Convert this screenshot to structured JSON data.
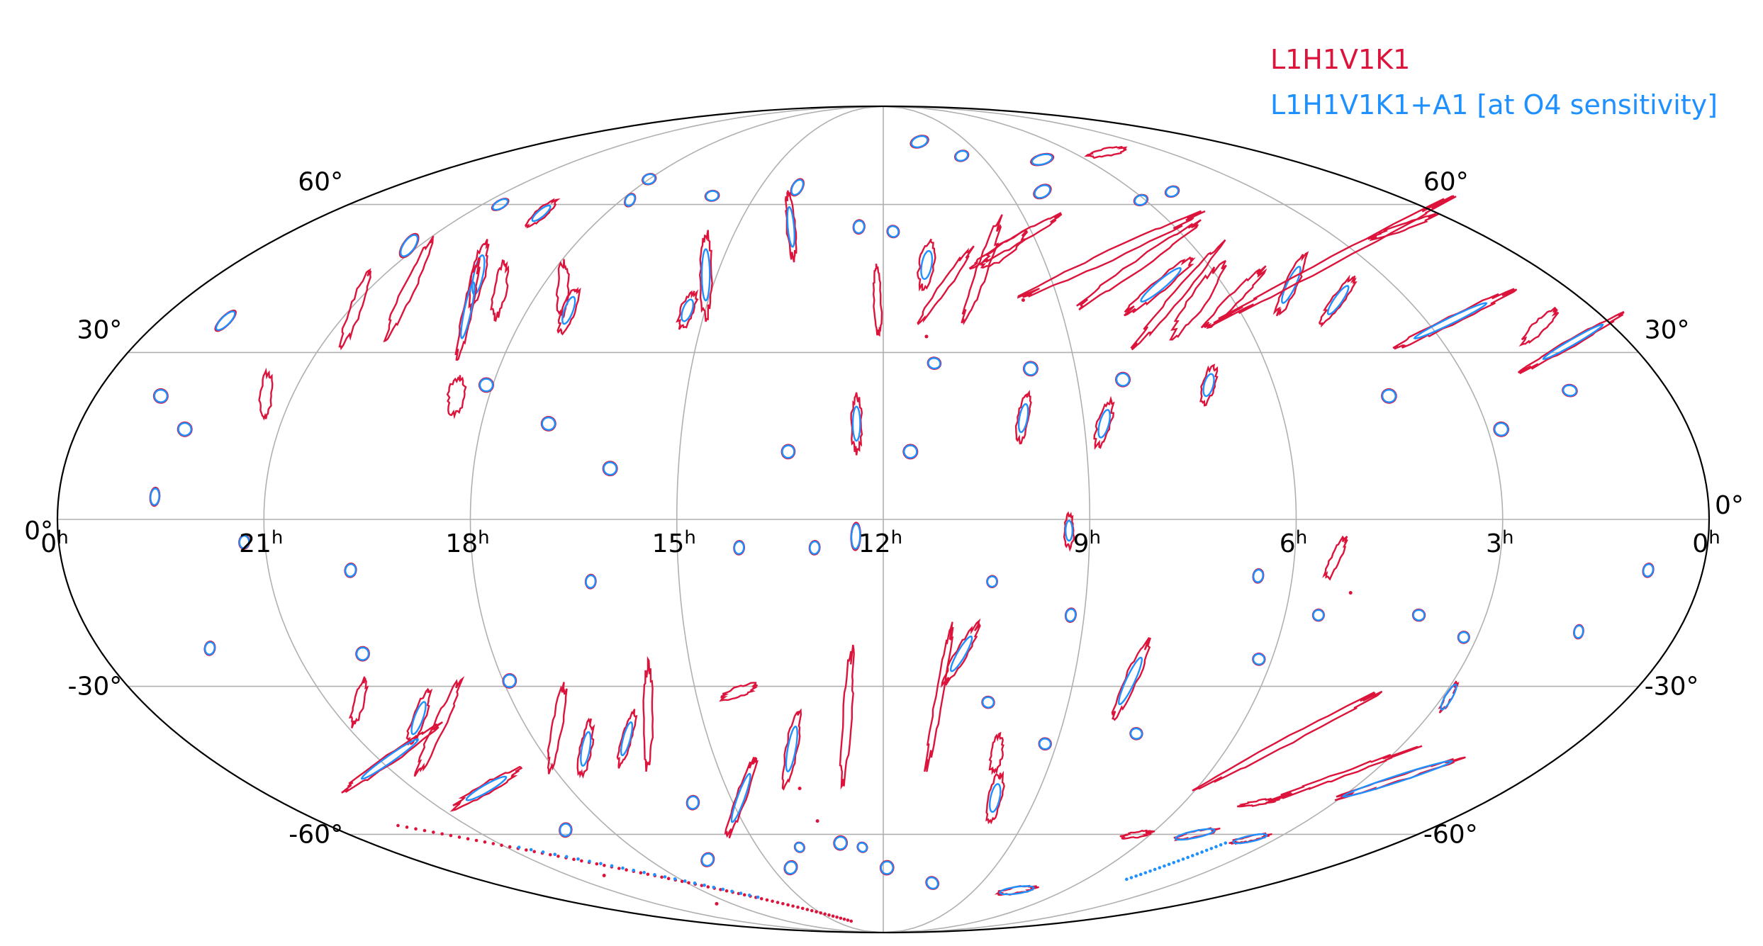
{
  "legend": [
    {
      "label": "L1H1V1K1",
      "color": "#dc143c"
    },
    {
      "label": "L1H1V1K1+A1 [at O4 sensitivity]",
      "color": "#1e90ff"
    }
  ],
  "projection": "mollweide",
  "grid": true,
  "ra_labels": [
    "0h",
    "21h",
    "18h",
    "15h",
    "12h",
    "9h",
    "6h",
    "3h",
    "0h"
  ],
  "dec_labels": {
    "left": [
      "60°",
      "30°",
      "0°",
      "-30°",
      "-60°"
    ],
    "right": [
      "60°",
      "30°",
      "0°",
      "-30°",
      "-60°"
    ]
  },
  "colors": {
    "red": "#dc143c",
    "blue": "#1e90ff",
    "grid": "#b0b0b0",
    "border": "#000000"
  },
  "regions": [
    {
      "ra": 13.9,
      "dec": 55,
      "len": 14,
      "w": 1.2,
      "ang": 95,
      "c": "both"
    },
    {
      "ra": 12.1,
      "dec": 40,
      "len": 14,
      "w": 1.0,
      "ang": 92,
      "c": "red"
    },
    {
      "ra": 11.2,
      "dec": 47,
      "len": 10,
      "w": 2.5,
      "ang": 80,
      "c": "both"
    },
    {
      "ra": 10.9,
      "dec": 43,
      "len": 18,
      "w": 1.3,
      "ang": 55,
      "c": "red"
    },
    {
      "ra": 10.2,
      "dec": 46,
      "len": 22,
      "w": 1.8,
      "ang": 70,
      "c": "red"
    },
    {
      "ra": 9.7,
      "dec": 50,
      "len": 12,
      "w": 2.2,
      "ang": 38,
      "c": "red"
    },
    {
      "ra": 9.4,
      "dec": 52,
      "len": 22,
      "w": 1.2,
      "ang": 30,
      "c": "red"
    },
    {
      "ra": 7.7,
      "dec": 49,
      "len": 40,
      "w": 1.5,
      "ang": 25,
      "c": "red"
    },
    {
      "ra": 7.3,
      "dec": 47,
      "len": 32,
      "w": 1.5,
      "ang": 35,
      "c": "red"
    },
    {
      "ra": 7.1,
      "dec": 43,
      "len": 18,
      "w": 2.0,
      "ang": 40,
      "c": "both"
    },
    {
      "ra": 6.9,
      "dec": 41,
      "len": 28,
      "w": 1.4,
      "ang": 50,
      "c": "red"
    },
    {
      "ra": 6.6,
      "dec": 40,
      "len": 18,
      "w": 2.8,
      "ang": 55,
      "c": "red"
    },
    {
      "ra": 6.0,
      "dec": 40,
      "len": 18,
      "w": 1.6,
      "ang": 45,
      "c": "red"
    },
    {
      "ra": 4.8,
      "dec": 43,
      "len": 14,
      "w": 2.0,
      "ang": 65,
      "c": "both"
    },
    {
      "ra": 4.2,
      "dec": 40,
      "len": 12,
      "w": 1.8,
      "ang": 55,
      "c": "both"
    },
    {
      "ra": 3.6,
      "dec": 48,
      "len": 55,
      "w": 1.0,
      "ang": 28,
      "c": "red"
    },
    {
      "ra": 2.6,
      "dec": 36,
      "len": 28,
      "w": 1.2,
      "ang": 26,
      "c": "both"
    },
    {
      "ra": 1.3,
      "dec": 55,
      "len": 14,
      "w": 0.8,
      "ang": 20,
      "c": "red"
    },
    {
      "ra": 1.2,
      "dec": 35,
      "len": 10,
      "w": 2.0,
      "ang": 45,
      "c": "red"
    },
    {
      "ra": 0.9,
      "dec": 32,
      "len": 24,
      "w": 1.0,
      "ang": 30,
      "c": "both"
    },
    {
      "ra": 20.9,
      "dec": 38,
      "len": 16,
      "w": 1.8,
      "ang": 70,
      "c": "red"
    },
    {
      "ra": 20.3,
      "dec": 42,
      "len": 22,
      "w": 1.8,
      "ang": 65,
      "c": "red"
    },
    {
      "ra": 19.3,
      "dec": 45,
      "len": 14,
      "w": 2.2,
      "ang": 78,
      "c": "both"
    },
    {
      "ra": 19.0,
      "dec": 38,
      "len": 20,
      "w": 1.4,
      "ang": 78,
      "c": "both"
    },
    {
      "ra": 18.7,
      "dec": 42,
      "len": 12,
      "w": 2.0,
      "ang": 80,
      "c": "red"
    },
    {
      "ra": 17.6,
      "dec": 42,
      "len": 12,
      "w": 1.8,
      "ang": 88,
      "c": "red"
    },
    {
      "ra": 17.3,
      "dec": 38,
      "len": 10,
      "w": 2.0,
      "ang": 70,
      "c": "both"
    },
    {
      "ra": 15.2,
      "dec": 45,
      "len": 18,
      "w": 1.8,
      "ang": 90,
      "c": "both"
    },
    {
      "ra": 15.3,
      "dec": 38,
      "len": 8,
      "w": 2.2,
      "ang": 70,
      "c": "both"
    },
    {
      "ra": 12.4,
      "dec": 17,
      "len": 12,
      "w": 1.6,
      "ang": 90,
      "c": "both"
    },
    {
      "ra": 9.9,
      "dec": 18,
      "len": 10,
      "w": 1.8,
      "ang": 80,
      "c": "both"
    },
    {
      "ra": 8.7,
      "dec": 17,
      "len": 10,
      "w": 2.2,
      "ang": 75,
      "c": "both"
    },
    {
      "ra": 7.0,
      "dec": 24,
      "len": 8,
      "w": 2.2,
      "ang": 75,
      "c": "both"
    },
    {
      "ra": 18.5,
      "dec": 22,
      "len": 8,
      "w": 2.8,
      "ang": 80,
      "c": "red"
    },
    {
      "ra": 21.4,
      "dec": 22,
      "len": 10,
      "w": 1.8,
      "ang": 85,
      "c": "red"
    },
    {
      "ra": 12.4,
      "dec": -3,
      "len": 6,
      "w": 1.4,
      "ang": 88,
      "c": "both"
    },
    {
      "ra": 9.3,
      "dec": -2,
      "len": 7,
      "w": 1.4,
      "ang": 90,
      "c": "both"
    },
    {
      "ra": 5.4,
      "dec": -7,
      "len": 10,
      "w": 1.4,
      "ang": 65,
      "c": "red"
    },
    {
      "ra": 10.8,
      "dec": -24,
      "len": 14,
      "w": 1.8,
      "ang": 60,
      "c": "both"
    },
    {
      "ra": 8.1,
      "dec": -29,
      "len": 18,
      "w": 2.0,
      "ang": 65,
      "c": "both"
    },
    {
      "ra": 11.1,
      "dec": -32,
      "len": 30,
      "w": 1.0,
      "ang": 80,
      "c": "red"
    },
    {
      "ra": 12.6,
      "dec": -36,
      "len": 28,
      "w": 1.2,
      "ang": 86,
      "c": "red"
    },
    {
      "ra": 13.6,
      "dec": -42,
      "len": 16,
      "w": 1.8,
      "ang": 80,
      "c": "both"
    },
    {
      "ra": 14.3,
      "dec": -31,
      "len": 8,
      "w": 1.5,
      "ang": 20,
      "c": "red"
    },
    {
      "ra": 15.9,
      "dec": -36,
      "len": 22,
      "w": 1.4,
      "ang": 90,
      "c": "red"
    },
    {
      "ra": 16.4,
      "dec": -40,
      "len": 12,
      "w": 1.5,
      "ang": 75,
      "c": "both"
    },
    {
      "ra": 17.5,
      "dec": -38,
      "len": 18,
      "w": 1.6,
      "ang": 80,
      "c": "red"
    },
    {
      "ra": 17.2,
      "dec": -42,
      "len": 12,
      "w": 1.8,
      "ang": 80,
      "c": "both"
    },
    {
      "ra": 19.5,
      "dec": -38,
      "len": 22,
      "w": 1.8,
      "ang": 65,
      "c": "red"
    },
    {
      "ra": 19.7,
      "dec": -36,
      "len": 12,
      "w": 2.0,
      "ang": 70,
      "c": "both"
    },
    {
      "ra": 20.8,
      "dec": -44,
      "len": 24,
      "w": 1.4,
      "ang": 35,
      "c": "both"
    },
    {
      "ra": 19.6,
      "dec": -50,
      "len": 16,
      "w": 1.6,
      "ang": 30,
      "c": "both"
    },
    {
      "ra": 20.5,
      "dec": -33,
      "len": 10,
      "w": 1.6,
      "ang": 75,
      "c": "red"
    },
    {
      "ra": 5.0,
      "dec": -40,
      "len": 42,
      "w": 1.0,
      "ang": 28,
      "c": "red"
    },
    {
      "ra": 3.5,
      "dec": -47,
      "len": 46,
      "w": 1.0,
      "ang": 20,
      "c": "red"
    },
    {
      "ra": 2.4,
      "dec": -48,
      "len": 40,
      "w": 1.3,
      "ang": 18,
      "c": "both"
    },
    {
      "ra": 2.9,
      "dec": -32,
      "len": 10,
      "w": 1.4,
      "ang": 60,
      "c": "both"
    },
    {
      "ra": 4.5,
      "dec": -53,
      "len": 12,
      "w": 0.8,
      "ang": 10,
      "c": "red"
    },
    {
      "ra": 5.0,
      "dec": -60,
      "len": 14,
      "w": 1.4,
      "ang": 12,
      "c": "both"
    },
    {
      "ra": 6.3,
      "dec": -60,
      "len": 10,
      "w": 1.2,
      "ang": 10,
      "c": "red"
    },
    {
      "ra": 3.6,
      "dec": -61,
      "len": 12,
      "w": 1.1,
      "ang": 12,
      "c": "both"
    },
    {
      "ra": 14.8,
      "dec": -52,
      "len": 18,
      "w": 1.5,
      "ang": 70,
      "c": "both"
    },
    {
      "ra": 10.0,
      "dec": -43,
      "len": 8,
      "w": 1.8,
      "ang": 80,
      "c": "red"
    },
    {
      "ra": 9.8,
      "dec": -52,
      "len": 10,
      "w": 2.2,
      "ang": 78,
      "c": "both"
    },
    {
      "ra": 12.5,
      "dec": -63,
      "len": 2,
      "w": 1.6,
      "ang": 45,
      "c": "both"
    },
    {
      "ra": 14.0,
      "dec": -63,
      "len": 2,
      "w": 1.6,
      "ang": 45,
      "c": "both"
    },
    {
      "ra": 7.6,
      "dec": -74,
      "len": 12,
      "w": 1.4,
      "ang": 8,
      "c": "both"
    },
    {
      "ra": 4.3,
      "dec": 22,
      "len": 3,
      "w": 2.5,
      "ang": 80,
      "c": "both"
    },
    {
      "ra": 2.8,
      "dec": 16,
      "len": 3,
      "w": 2.5,
      "ang": 80,
      "c": "both"
    },
    {
      "ra": 1.5,
      "dec": 23,
      "len": 2.5,
      "w": 2.5,
      "ang": 80,
      "c": "both"
    },
    {
      "ra": 8.3,
      "dec": 25,
      "len": 3,
      "w": 2.4,
      "ang": 70,
      "c": "both"
    },
    {
      "ra": 9.7,
      "dec": 27,
      "len": 3,
      "w": 2.4,
      "ang": 45,
      "c": "both"
    },
    {
      "ra": 11.2,
      "dec": 28,
      "len": 2.5,
      "w": 2.2,
      "ang": 80,
      "c": "both"
    },
    {
      "ra": 11.6,
      "dec": 12,
      "len": 3,
      "w": 2.4,
      "ang": 80,
      "c": "both"
    },
    {
      "ra": 13.4,
      "dec": 12,
      "len": 3,
      "w": 2.2,
      "ang": 80,
      "c": "both"
    },
    {
      "ra": 16.0,
      "dec": 9,
      "len": 3,
      "w": 2.4,
      "ang": 80,
      "c": "both"
    },
    {
      "ra": 17.0,
      "dec": 17,
      "len": 3,
      "w": 2.4,
      "ang": 80,
      "c": "both"
    },
    {
      "ra": 18.1,
      "dec": 24,
      "len": 3,
      "w": 2.4,
      "ang": 80,
      "c": "both"
    },
    {
      "ra": 22.4,
      "dec": 16,
      "len": 3,
      "w": 2.4,
      "ang": 80,
      "c": "both"
    },
    {
      "ra": 23.0,
      "dec": 22,
      "len": 3,
      "w": 2.4,
      "ang": 80,
      "c": "both"
    },
    {
      "ra": 22.6,
      "dec": 4,
      "len": 4,
      "w": 1.4,
      "ang": 85,
      "c": "both"
    },
    {
      "ra": 21.3,
      "dec": -4,
      "len": 3,
      "w": 1.6,
      "ang": 85,
      "c": "both"
    },
    {
      "ra": 19.8,
      "dec": -9,
      "len": 3,
      "w": 1.8,
      "ang": 80,
      "c": "both"
    },
    {
      "ra": 16.3,
      "dec": -11,
      "len": 3,
      "w": 1.6,
      "ang": 85,
      "c": "both"
    },
    {
      "ra": 13.0,
      "dec": -5,
      "len": 3,
      "w": 1.6,
      "ang": 85,
      "c": "both"
    },
    {
      "ra": 14.1,
      "dec": -5,
      "len": 3,
      "w": 1.6,
      "ang": 85,
      "c": "both"
    },
    {
      "ra": 10.4,
      "dec": -11,
      "len": 2.5,
      "w": 1.6,
      "ang": 85,
      "c": "both"
    },
    {
      "ra": 9.2,
      "dec": -17,
      "len": 3,
      "w": 1.6,
      "ang": 80,
      "c": "both"
    },
    {
      "ra": 6.5,
      "dec": -10,
      "len": 3,
      "w": 1.6,
      "ang": 80,
      "c": "both"
    },
    {
      "ra": 5.5,
      "dec": -17,
      "len": 2.5,
      "w": 1.8,
      "ang": 80,
      "c": "both"
    },
    {
      "ra": 4.0,
      "dec": -17,
      "len": 2.5,
      "w": 2.0,
      "ang": 80,
      "c": "both"
    },
    {
      "ra": 3.2,
      "dec": -21,
      "len": 2.5,
      "w": 1.8,
      "ang": 80,
      "c": "both"
    },
    {
      "ra": 1.5,
      "dec": -20,
      "len": 3,
      "w": 1.4,
      "ang": 80,
      "c": "both"
    },
    {
      "ra": 0.8,
      "dec": -9,
      "len": 3,
      "w": 1.6,
      "ang": 75,
      "c": "both"
    },
    {
      "ra": 10.3,
      "dec": -33,
      "len": 2.5,
      "w": 2.0,
      "ang": 80,
      "c": "both"
    },
    {
      "ra": 9.2,
      "dec": -41,
      "len": 2.5,
      "w": 2.0,
      "ang": 80,
      "c": "both"
    },
    {
      "ra": 7.7,
      "dec": -39,
      "len": 2.5,
      "w": 2.0,
      "ang": 80,
      "c": "both"
    },
    {
      "ra": 6.2,
      "dec": -25,
      "len": 2.5,
      "w": 2.0,
      "ang": 80,
      "c": "both"
    },
    {
      "ra": 13.0,
      "dec": -62,
      "len": 3,
      "w": 2.2,
      "ang": 75,
      "c": "both"
    },
    {
      "ra": 11.9,
      "dec": -68,
      "len": 3,
      "w": 2.2,
      "ang": 80,
      "c": "both"
    },
    {
      "ra": 10.5,
      "dec": -72,
      "len": 2.5,
      "w": 2.2,
      "ang": 45,
      "c": "both"
    },
    {
      "ra": 15.8,
      "dec": -53,
      "len": 3,
      "w": 2.0,
      "ang": 80,
      "c": "both"
    },
    {
      "ra": 17.9,
      "dec": -29,
      "len": 3,
      "w": 2.2,
      "ang": 80,
      "c": "both"
    },
    {
      "ra": 20.0,
      "dec": -24,
      "len": 3,
      "w": 2.2,
      "ang": 80,
      "c": "both"
    },
    {
      "ra": 19.0,
      "dec": -59,
      "len": 3,
      "w": 2.0,
      "ang": 80,
      "c": "both"
    },
    {
      "ra": 16.5,
      "dec": -66,
      "len": 3,
      "w": 2.0,
      "ang": 60,
      "c": "both"
    },
    {
      "ra": 14.5,
      "dec": -68,
      "len": 3,
      "w": 2.0,
      "ang": 60,
      "c": "both"
    },
    {
      "ra": 22.3,
      "dec": -23,
      "len": 3,
      "w": 1.6,
      "ang": 80,
      "c": "both"
    },
    {
      "ra": 16.0,
      "dec": 62,
      "len": 3,
      "w": 1.6,
      "ang": 10,
      "c": "both"
    },
    {
      "ra": 17.8,
      "dec": 61,
      "len": 3,
      "w": 1.4,
      "ang": 60,
      "c": "both"
    },
    {
      "ra": 14.1,
      "dec": 64,
      "len": 4,
      "w": 1.6,
      "ang": 60,
      "c": "both"
    },
    {
      "ra": 12.5,
      "dec": 55,
      "len": 3,
      "w": 1.8,
      "ang": 80,
      "c": "both"
    },
    {
      "ra": 10.7,
      "dec": 76,
      "len": 4,
      "w": 1.8,
      "ang": 20,
      "c": "both"
    },
    {
      "ra": 9.6,
      "dec": 72,
      "len": 3,
      "w": 1.6,
      "ang": 20,
      "c": "both"
    },
    {
      "ra": 8.2,
      "dec": 63,
      "len": 4,
      "w": 2.0,
      "ang": 30,
      "c": "both"
    },
    {
      "ra": 6.1,
      "dec": 61,
      "len": 3,
      "w": 1.6,
      "ang": 20,
      "c": "both"
    },
    {
      "ra": 5.1,
      "dec": 63,
      "len": 3,
      "w": 1.6,
      "ang": 20,
      "c": "both"
    },
    {
      "ra": 4.9,
      "dec": 73,
      "len": 8,
      "w": 1.0,
      "ang": 10,
      "c": "red"
    },
    {
      "ra": 7.3,
      "dec": 71,
      "len": 5,
      "w": 1.6,
      "ang": 15,
      "c": "both"
    },
    {
      "ra": 20.6,
      "dec": 60,
      "len": 4,
      "w": 1.2,
      "ang": 30,
      "c": "both"
    },
    {
      "ra": 19.4,
      "dec": 58,
      "len": 8,
      "w": 1.4,
      "ang": 40,
      "c": "both"
    },
    {
      "ra": 18.0,
      "dec": 66,
      "len": 3,
      "w": 1.6,
      "ang": 20,
      "c": "both"
    },
    {
      "ra": 21.2,
      "dec": 51,
      "len": 6,
      "w": 2.0,
      "ang": 55,
      "c": "both"
    },
    {
      "ra": 22.9,
      "dec": 36,
      "len": 6,
      "w": 1.4,
      "ang": 45,
      "c": "both"
    },
    {
      "ra": 11.8,
      "dec": 54,
      "len": 2.5,
      "w": 2.0,
      "ang": 40,
      "c": "both"
    }
  ],
  "points_red": [
    {
      "ra": 20.0,
      "dec": -70
    },
    {
      "ra": 18.6,
      "dec": -78
    },
    {
      "ra": 13.6,
      "dec": -50
    },
    {
      "ra": 9.6,
      "dec": 40
    },
    {
      "ra": 11.3,
      "dec": 33
    },
    {
      "ra": 5.1,
      "dec": -13
    },
    {
      "ra": 13.4,
      "dec": -57
    }
  ],
  "dotted_streaks": [
    {
      "from": {
        "ra": 22.5,
        "dec": -58
      },
      "to": {
        "ra": 14.0,
        "dec": -84
      },
      "c": "red",
      "n": 70
    },
    {
      "from": {
        "ra": 20.7,
        "dec": -63
      },
      "to": {
        "ra": 16.5,
        "dec": -76
      },
      "c": "blue",
      "n": 24
    },
    {
      "from": {
        "ra": 4.8,
        "dec": -71
      },
      "to": {
        "ra": 4.0,
        "dec": -62
      },
      "c": "blue",
      "n": 22
    }
  ]
}
